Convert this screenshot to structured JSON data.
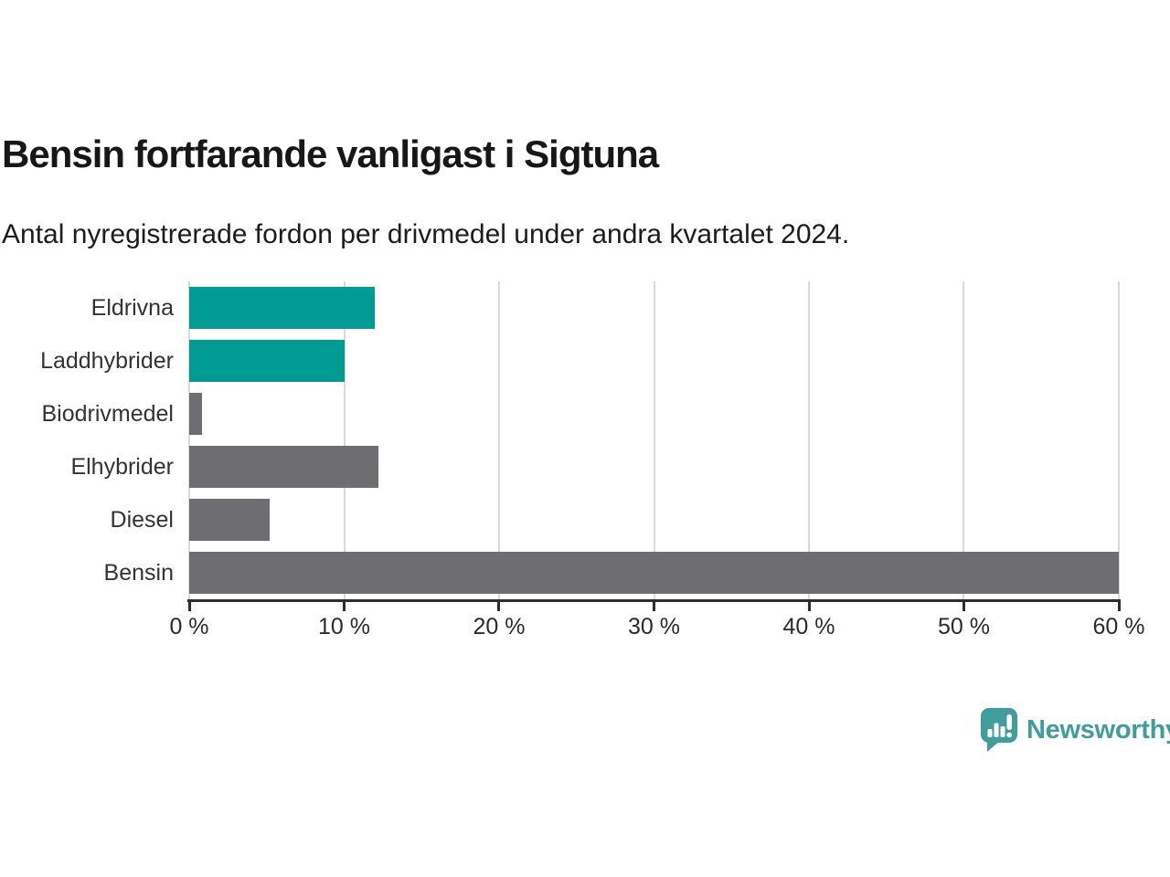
{
  "chart_data": {
    "type": "bar",
    "orientation": "horizontal",
    "title": "Bensin fortfarande vanligast i Sigtuna",
    "subtitle": "Antal nyregistrerade fordon per drivmedel under andra kvartalet 2024.",
    "categories": [
      "Eldrivna",
      "Laddhybrider",
      "Biodrivmedel",
      "Elhybrider",
      "Diesel",
      "Bensin"
    ],
    "values": [
      12,
      10,
      0.8,
      12.2,
      5.2,
      60
    ],
    "unit": "%",
    "colors": [
      "#009c94",
      "#009c94",
      "#6d6d72",
      "#6d6d72",
      "#6d6d72",
      "#6d6d72"
    ],
    "xlim": [
      0,
      60
    ],
    "x_ticks": [
      0,
      10,
      20,
      30,
      40,
      50,
      60
    ],
    "x_tick_labels": [
      "0 %",
      "10 %",
      "20 %",
      "30 %",
      "40 %",
      "50 %",
      "60 %"
    ],
    "grid": "vertical-gridlines",
    "legend": "none"
  },
  "branding": {
    "logo_text": "Newsworthy",
    "logo_icon": "speech-bubble-bar-chart-icon",
    "accent_color": "#3f9e9b"
  },
  "palette": {
    "highlight_bar": "#009c94",
    "default_bar": "#6d6d72",
    "gridline": "#dadada",
    "axis": "#2e2e2e",
    "background": "#ffffff"
  }
}
